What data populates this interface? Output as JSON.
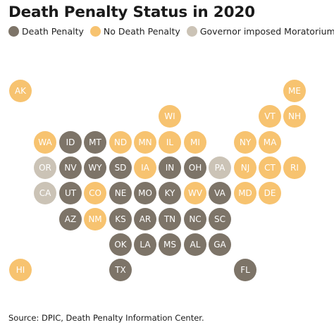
{
  "title": "Death Penalty Status in 2020",
  "source": "Source: DPIC, Death Penalty Information Center.",
  "colors": {
    "death_penalty": "#7d7468",
    "no_death_penalty": "#f7c370",
    "moratorium": "#cbc3b6"
  },
  "legend": [
    {
      "key": "death_penalty",
      "label": "Death Penalty"
    },
    {
      "key": "no_death_penalty",
      "label": "No Death Penalty"
    },
    {
      "key": "moratorium",
      "label": "Governor imposed Moratorium"
    }
  ],
  "states": [
    {
      "abbr": "AK",
      "status": "no_death_penalty",
      "row": 0,
      "col": 0
    },
    {
      "abbr": "ME",
      "status": "no_death_penalty",
      "row": 0,
      "col": 11
    },
    {
      "abbr": "WI",
      "status": "no_death_penalty",
      "row": 1,
      "col": 6
    },
    {
      "abbr": "VT",
      "status": "no_death_penalty",
      "row": 1,
      "col": 10
    },
    {
      "abbr": "NH",
      "status": "no_death_penalty",
      "row": 1,
      "col": 11
    },
    {
      "abbr": "WA",
      "status": "no_death_penalty",
      "row": 2,
      "col": 1
    },
    {
      "abbr": "ID",
      "status": "death_penalty",
      "row": 2,
      "col": 2
    },
    {
      "abbr": "MT",
      "status": "death_penalty",
      "row": 2,
      "col": 3
    },
    {
      "abbr": "ND",
      "status": "no_death_penalty",
      "row": 2,
      "col": 4
    },
    {
      "abbr": "MN",
      "status": "no_death_penalty",
      "row": 2,
      "col": 5
    },
    {
      "abbr": "IL",
      "status": "no_death_penalty",
      "row": 2,
      "col": 6
    },
    {
      "abbr": "MI",
      "status": "no_death_penalty",
      "row": 2,
      "col": 7
    },
    {
      "abbr": "NY",
      "status": "no_death_penalty",
      "row": 2,
      "col": 9
    },
    {
      "abbr": "MA",
      "status": "no_death_penalty",
      "row": 2,
      "col": 10
    },
    {
      "abbr": "OR",
      "status": "moratorium",
      "row": 3,
      "col": 1
    },
    {
      "abbr": "NV",
      "status": "death_penalty",
      "row": 3,
      "col": 2
    },
    {
      "abbr": "WY",
      "status": "death_penalty",
      "row": 3,
      "col": 3
    },
    {
      "abbr": "SD",
      "status": "death_penalty",
      "row": 3,
      "col": 4
    },
    {
      "abbr": "IA",
      "status": "no_death_penalty",
      "row": 3,
      "col": 5
    },
    {
      "abbr": "IN",
      "status": "death_penalty",
      "row": 3,
      "col": 6
    },
    {
      "abbr": "OH",
      "status": "death_penalty",
      "row": 3,
      "col": 7
    },
    {
      "abbr": "PA",
      "status": "moratorium",
      "row": 3,
      "col": 8
    },
    {
      "abbr": "NJ",
      "status": "no_death_penalty",
      "row": 3,
      "col": 9
    },
    {
      "abbr": "CT",
      "status": "no_death_penalty",
      "row": 3,
      "col": 10
    },
    {
      "abbr": "RI",
      "status": "no_death_penalty",
      "row": 3,
      "col": 11
    },
    {
      "abbr": "CA",
      "status": "moratorium",
      "row": 4,
      "col": 1
    },
    {
      "abbr": "UT",
      "status": "death_penalty",
      "row": 4,
      "col": 2
    },
    {
      "abbr": "CO",
      "status": "no_death_penalty",
      "row": 4,
      "col": 3
    },
    {
      "abbr": "NE",
      "status": "death_penalty",
      "row": 4,
      "col": 4
    },
    {
      "abbr": "MO",
      "status": "death_penalty",
      "row": 4,
      "col": 5
    },
    {
      "abbr": "KY",
      "status": "death_penalty",
      "row": 4,
      "col": 6
    },
    {
      "abbr": "WV",
      "status": "no_death_penalty",
      "row": 4,
      "col": 7
    },
    {
      "abbr": "VA",
      "status": "death_penalty",
      "row": 4,
      "col": 8
    },
    {
      "abbr": "MD",
      "status": "no_death_penalty",
      "row": 4,
      "col": 9
    },
    {
      "abbr": "DE",
      "status": "no_death_penalty",
      "row": 4,
      "col": 10
    },
    {
      "abbr": "AZ",
      "status": "death_penalty",
      "row": 5,
      "col": 2
    },
    {
      "abbr": "NM",
      "status": "no_death_penalty",
      "row": 5,
      "col": 3
    },
    {
      "abbr": "KS",
      "status": "death_penalty",
      "row": 5,
      "col": 4
    },
    {
      "abbr": "AR",
      "status": "death_penalty",
      "row": 5,
      "col": 5
    },
    {
      "abbr": "TN",
      "status": "death_penalty",
      "row": 5,
      "col": 6
    },
    {
      "abbr": "NC",
      "status": "death_penalty",
      "row": 5,
      "col": 7
    },
    {
      "abbr": "SC",
      "status": "death_penalty",
      "row": 5,
      "col": 8
    },
    {
      "abbr": "OK",
      "status": "death_penalty",
      "row": 6,
      "col": 4
    },
    {
      "abbr": "LA",
      "status": "death_penalty",
      "row": 6,
      "col": 5
    },
    {
      "abbr": "MS",
      "status": "death_penalty",
      "row": 6,
      "col": 6
    },
    {
      "abbr": "AL",
      "status": "death_penalty",
      "row": 6,
      "col": 7
    },
    {
      "abbr": "GA",
      "status": "death_penalty",
      "row": 6,
      "col": 8
    },
    {
      "abbr": "HI",
      "status": "no_death_penalty",
      "row": 7,
      "col": 0
    },
    {
      "abbr": "TX",
      "status": "death_penalty",
      "row": 7,
      "col": 4
    },
    {
      "abbr": "FL",
      "status": "death_penalty",
      "row": 7,
      "col": 9
    }
  ]
}
